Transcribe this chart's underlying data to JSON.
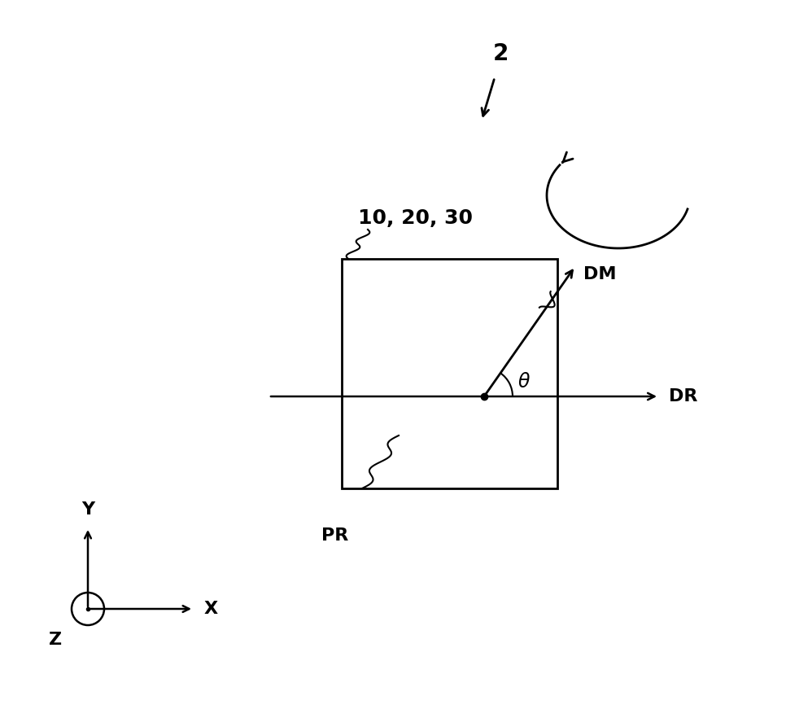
{
  "bg_color": "#ffffff",
  "fig_width": 9.66,
  "fig_height": 8.71,
  "label_2": "2",
  "label_modules": "10, 20, 30",
  "label_DM": "DM",
  "label_DR": "DR",
  "label_PR": "PR",
  "label_theta": "θ",
  "label_Y": "Y",
  "label_X": "X",
  "label_Z": "Z",
  "font_size_labels": 16,
  "font_size_numbers": 18,
  "font_size_theta": 17,
  "font_size_axis": 16
}
